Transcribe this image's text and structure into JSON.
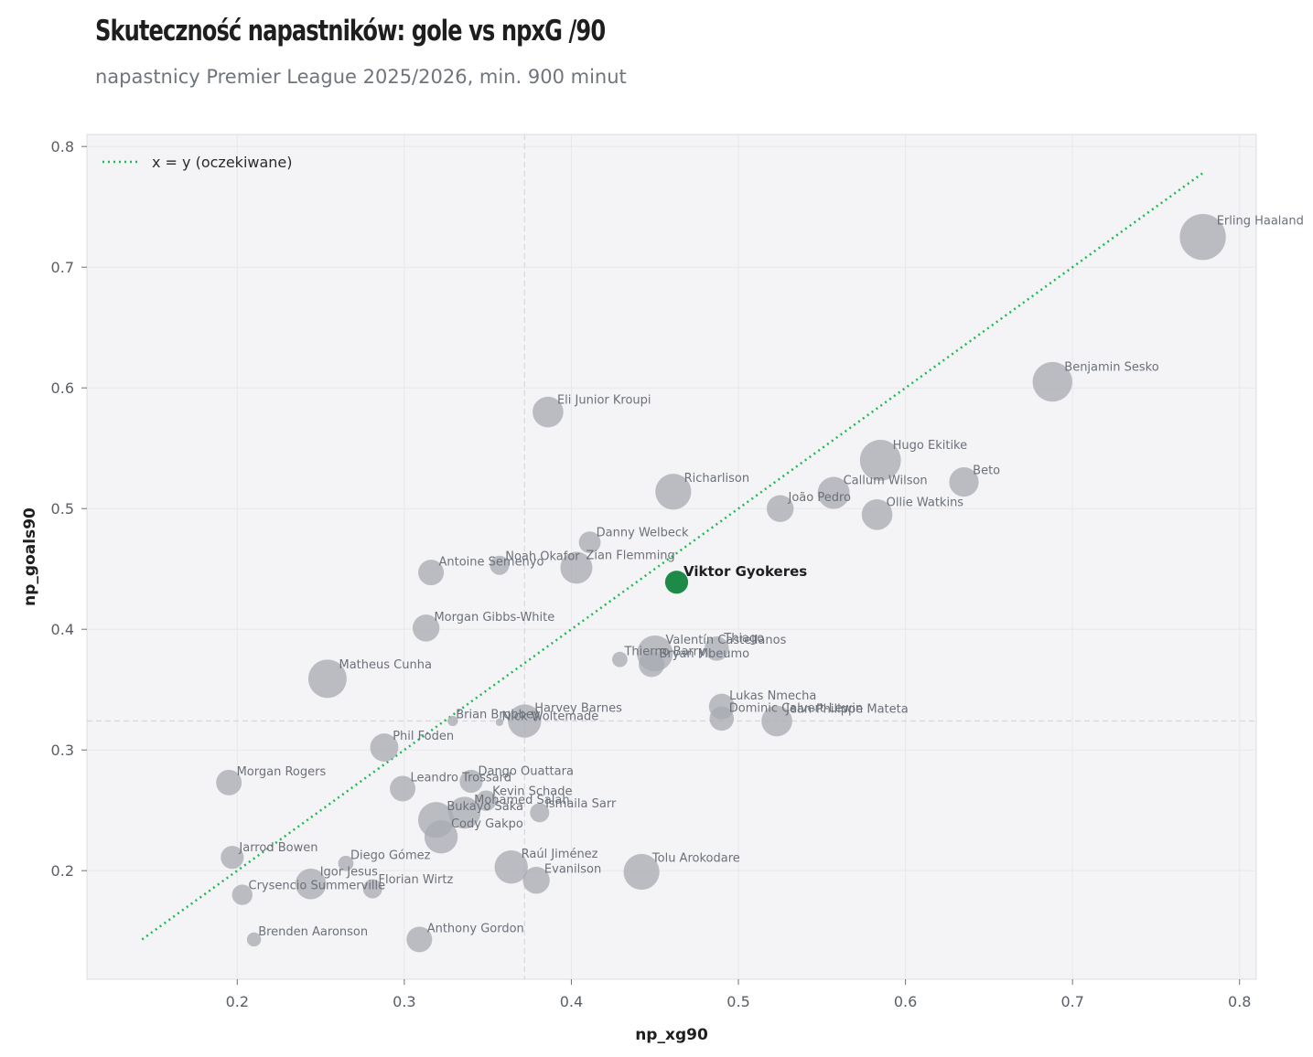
{
  "title": "Skuteczność napastników: gole vs npxG /90",
  "subtitle": "napastnicy Premier League 2025/2026, min. 900 minut",
  "colors": {
    "background": "#f4f4f6",
    "point": "#a9acb3",
    "highlight": "#1e8a48",
    "diagonal": "#1db954",
    "mean_line": "#d8d8dc"
  },
  "chart_data": {
    "type": "scatter",
    "title": "Skuteczność napastników: gole vs npxG /90",
    "subtitle": "napastnicy Premier League 2025/2026, min. 900 minut",
    "xlabel": "np_xg90",
    "ylabel": "np_goals90",
    "xlim": [
      0.11,
      0.81
    ],
    "ylim": [
      0.11,
      0.81
    ],
    "xticks": [
      "0.2",
      "0.3",
      "0.4",
      "0.5",
      "0.6",
      "0.7",
      "0.8"
    ],
    "yticks": [
      "0.2",
      "0.3",
      "0.4",
      "0.5",
      "0.6",
      "0.7",
      "0.8"
    ],
    "grid": true,
    "legend": {
      "position": "top-left",
      "entries": [
        "x = y (oczekiwane)"
      ]
    },
    "reference_line": {
      "label": "x = y (oczekiwane)",
      "from": 0.143,
      "to": 0.778
    },
    "mean_lines": {
      "x": 0.372,
      "y": 0.324
    },
    "highlight": "Viktor Gyokeres",
    "points": [
      {
        "name": "Erling Haaland",
        "x": 0.778,
        "y": 0.725,
        "size": 7.2
      },
      {
        "name": "Benjamin Sesko",
        "x": 0.688,
        "y": 0.605,
        "size": 6.2
      },
      {
        "name": "Hugo Ekitike",
        "x": 0.585,
        "y": 0.54,
        "size": 6.4
      },
      {
        "name": "Beto",
        "x": 0.635,
        "y": 0.522,
        "size": 4.6
      },
      {
        "name": "Callum Wilson",
        "x": 0.557,
        "y": 0.513,
        "size": 5.0
      },
      {
        "name": "João Pedro",
        "x": 0.525,
        "y": 0.5,
        "size": 4.2
      },
      {
        "name": "Ollie Watkins",
        "x": 0.583,
        "y": 0.495,
        "size": 4.8
      },
      {
        "name": "Eli Junior Kroupi",
        "x": 0.386,
        "y": 0.58,
        "size": 4.8
      },
      {
        "name": "Richarlison",
        "x": 0.461,
        "y": 0.514,
        "size": 5.6
      },
      {
        "name": "Danny Welbeck",
        "x": 0.411,
        "y": 0.472,
        "size": 3.4
      },
      {
        "name": "Viktor Gyokeres",
        "x": 0.463,
        "y": 0.439,
        "size": 3.6
      },
      {
        "name": "Zian Flemming",
        "x": 0.403,
        "y": 0.451,
        "size": 5.0
      },
      {
        "name": "Noah Okafor",
        "x": 0.357,
        "y": 0.453,
        "size": 3.0
      },
      {
        "name": "Antoine Semenyo",
        "x": 0.316,
        "y": 0.447,
        "size": 4.0
      },
      {
        "name": "Morgan Gibbs-White",
        "x": 0.313,
        "y": 0.401,
        "size": 4.2
      },
      {
        "name": "Matheus Cunha",
        "x": 0.254,
        "y": 0.359,
        "size": 6.0
      },
      {
        "name": "Thiago",
        "x": 0.487,
        "y": 0.384,
        "size": 3.8
      },
      {
        "name": "Valentín Castellanos",
        "x": 0.45,
        "y": 0.38,
        "size": 5.6
      },
      {
        "name": "Thierno Barry",
        "x": 0.429,
        "y": 0.375,
        "size": 2.4
      },
      {
        "name": "Bryan Mbeumo",
        "x": 0.448,
        "y": 0.371,
        "size": 4.0
      },
      {
        "name": "Lukas Nmecha",
        "x": 0.49,
        "y": 0.336,
        "size": 4.0
      },
      {
        "name": "Dominic Calvert-Lewin",
        "x": 0.49,
        "y": 0.326,
        "size": 3.8
      },
      {
        "name": "Jean-Philippe Mateta",
        "x": 0.523,
        "y": 0.324,
        "size": 4.8
      },
      {
        "name": "Brian Brobbey",
        "x": 0.329,
        "y": 0.324,
        "size": 1.6
      },
      {
        "name": "Nick Woltemade",
        "x": 0.357,
        "y": 0.323,
        "size": 1.2
      },
      {
        "name": "Harvey Barnes",
        "x": 0.372,
        "y": 0.324,
        "size": 5.2
      },
      {
        "name": "Phil Foden",
        "x": 0.288,
        "y": 0.302,
        "size": 4.4
      },
      {
        "name": "Morgan Rogers",
        "x": 0.195,
        "y": 0.273,
        "size": 4.0
      },
      {
        "name": "Dango Ouattara",
        "x": 0.34,
        "y": 0.274,
        "size": 3.6
      },
      {
        "name": "Leandro Trossard",
        "x": 0.299,
        "y": 0.268,
        "size": 4.0
      },
      {
        "name": "Kevin Schade",
        "x": 0.349,
        "y": 0.258,
        "size": 3.2
      },
      {
        "name": "Mohamed Salah",
        "x": 0.336,
        "y": 0.248,
        "size": 5.0
      },
      {
        "name": "Ismaila Sarr",
        "x": 0.381,
        "y": 0.248,
        "size": 3.0
      },
      {
        "name": "Bukayo Saka",
        "x": 0.319,
        "y": 0.242,
        "size": 5.6
      },
      {
        "name": "Cody Gakpo",
        "x": 0.322,
        "y": 0.228,
        "size": 5.2
      },
      {
        "name": "Jarrod Bowen",
        "x": 0.197,
        "y": 0.211,
        "size": 3.6
      },
      {
        "name": "Diego Gómez",
        "x": 0.265,
        "y": 0.206,
        "size": 2.4
      },
      {
        "name": "Raúl Jiménez",
        "x": 0.364,
        "y": 0.203,
        "size": 5.2
      },
      {
        "name": "Evanilson",
        "x": 0.379,
        "y": 0.192,
        "size": 4.2
      },
      {
        "name": "Tolu Arokodare",
        "x": 0.442,
        "y": 0.199,
        "size": 5.6
      },
      {
        "name": "Igor Jesus",
        "x": 0.244,
        "y": 0.189,
        "size": 4.8
      },
      {
        "name": "Crysencio Summerville",
        "x": 0.203,
        "y": 0.18,
        "size": 3.2
      },
      {
        "name": "Florian Wirtz",
        "x": 0.281,
        "y": 0.185,
        "size": 3.0
      },
      {
        "name": "Brenden Aaronson",
        "x": 0.21,
        "y": 0.143,
        "size": 2.2
      },
      {
        "name": "Anthony Gordon",
        "x": 0.309,
        "y": 0.143,
        "size": 4.0
      }
    ]
  }
}
